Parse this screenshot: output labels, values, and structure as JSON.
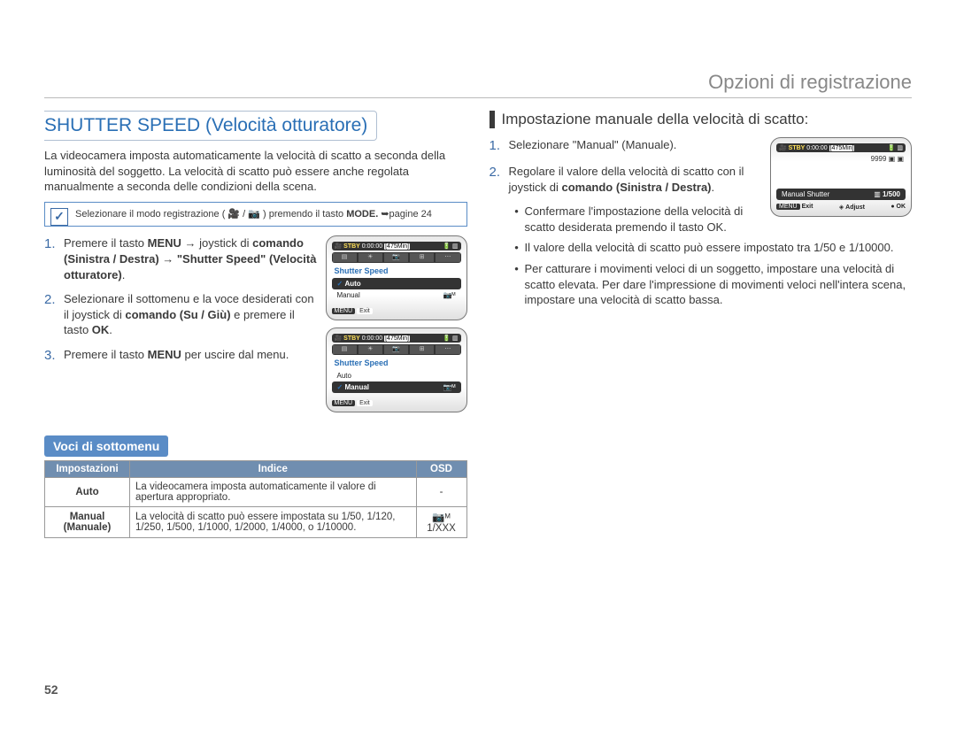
{
  "section_header": "Opzioni di registrazione",
  "page_number": "52",
  "left": {
    "title": "SHUTTER SPEED (Velocità otturatore)",
    "intro": "La videocamera imposta automaticamente la velocità di scatto a seconda della luminosità del soggetto. La velocità di scatto può essere anche regolata manualmente a seconda delle condizioni della scena.",
    "info_html": "Selezionare il modo registrazione ( 🎥 / 📷 ) premendo il tasto",
    "info_bold": "MODE.",
    "info_ref": "➥pagine 24",
    "steps": [
      {
        "n": "1.",
        "html": "Premere il tasto <b>MENU</b> → joystick di <b>comando (Sinistra / Destra)</b> → <b>\"Shutter Speed\" (Velocità otturatore)</b>."
      },
      {
        "n": "2.",
        "html": "Selezionare il sottomenu e la voce desiderati con il joystick di <b>comando (Su / Giù)</b> e premere il tasto <b>OK</b>."
      },
      {
        "n": "3.",
        "html": "Premere il tasto <b>MENU</b> per uscire dal menu."
      }
    ],
    "voci_label": "Voci di sottomenu",
    "table": {
      "headers": [
        "Impostazioni",
        "Indice",
        "OSD"
      ],
      "rows": [
        {
          "c0": "Auto",
          "c1": "La videocamera imposta automaticamente il valore di apertura appropriato.",
          "c2": "-"
        },
        {
          "c0": "Manual (Manuale)",
          "c1": "La velocità di scatto può essere impostata su 1/50, 1/120, 1/250, 1/500, 1/1000, 1/2000, 1/4000, o 1/10000.",
          "c2": "📷ᴹ 1/XXX"
        }
      ]
    },
    "lcd_a": {
      "stby": "STBY",
      "time": "0:00:00",
      "remain": "[475Min]",
      "title": "Shutter Speed",
      "rows": [
        {
          "label": "Auto",
          "sel": true,
          "chk": true
        },
        {
          "label": "Manual",
          "sel": false,
          "chk": false,
          "icon": "📷ᴹ"
        }
      ],
      "menu": "MENU",
      "exit": "Exit"
    },
    "lcd_b": {
      "stby": "STBY",
      "time": "0:00:00",
      "remain": "[475Min]",
      "title": "Shutter Speed",
      "rows": [
        {
          "label": "Auto",
          "sel": false,
          "chk": false
        },
        {
          "label": "Manual",
          "sel": true,
          "chk": true,
          "icon": "📷ᴹ"
        }
      ],
      "menu": "MENU",
      "exit": "Exit"
    }
  },
  "right": {
    "title": "Impostazione manuale della velocità di scatto:",
    "steps": [
      {
        "n": "1.",
        "html": "Selezionare \"Manual\" (Manuale)."
      },
      {
        "n": "2.",
        "html": "Regolare il valore della velocità di scatto con il joystick di <b>comando (Sinistra / Destra)</b>."
      }
    ],
    "sub_bullets": [
      "Confermare l'impostazione della velocità di scatto desiderata premendo il tasto OK.",
      "Il valore della velocità di scatto può essere impostato tra 1/50 e 1/10000.",
      "Per catturare i movimenti veloci di un soggetto, impostare una velocità di scatto elevata. Per dare l'impressione di movimenti veloci nell'intera scena, impostare una velocità di scatto bassa."
    ],
    "lcd_c": {
      "stby": "STBY",
      "time": "0:00:00",
      "remain": "[475Min]",
      "count": "9999",
      "label": "Manual Shutter",
      "value": "1/500",
      "menu": "MENU",
      "exit": "Exit",
      "adjust": "Adjust",
      "ok": "OK"
    }
  }
}
